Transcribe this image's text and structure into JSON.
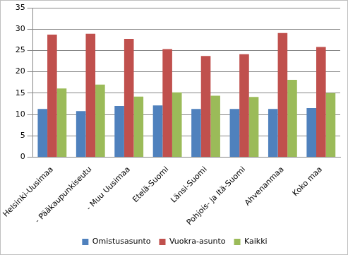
{
  "chart_data": {
    "type": "bar",
    "categories": [
      "Helsinki-Uusimaa",
      "- Pääkaupunkiseutu",
      "- Muu Uusimaa",
      "Etelä-Suomi",
      "Länsi-Suomi",
      "Pohjois- ja Itä-Suomi",
      "Ahvenanmaa",
      "Koko maa"
    ],
    "series": [
      {
        "name": "Omistusasunto",
        "color": "#4f81bd",
        "values": [
          11.3,
          10.8,
          12.0,
          12.1,
          11.3,
          11.3,
          11.3,
          11.5
        ]
      },
      {
        "name": "Vuokra-asunto",
        "color": "#c0504d",
        "values": [
          28.7,
          28.9,
          27.7,
          25.3,
          23.7,
          24.1,
          29.1,
          25.8
        ]
      },
      {
        "name": "Kaikki",
        "color": "#9bbb59",
        "values": [
          16.1,
          17.0,
          14.2,
          15.2,
          14.4,
          14.1,
          18.1,
          15.0
        ]
      }
    ],
    "ylim": [
      0,
      35
    ],
    "yticks": [
      0,
      5,
      10,
      15,
      20,
      25,
      30,
      35
    ],
    "grid": true,
    "legend": "bottom"
  }
}
